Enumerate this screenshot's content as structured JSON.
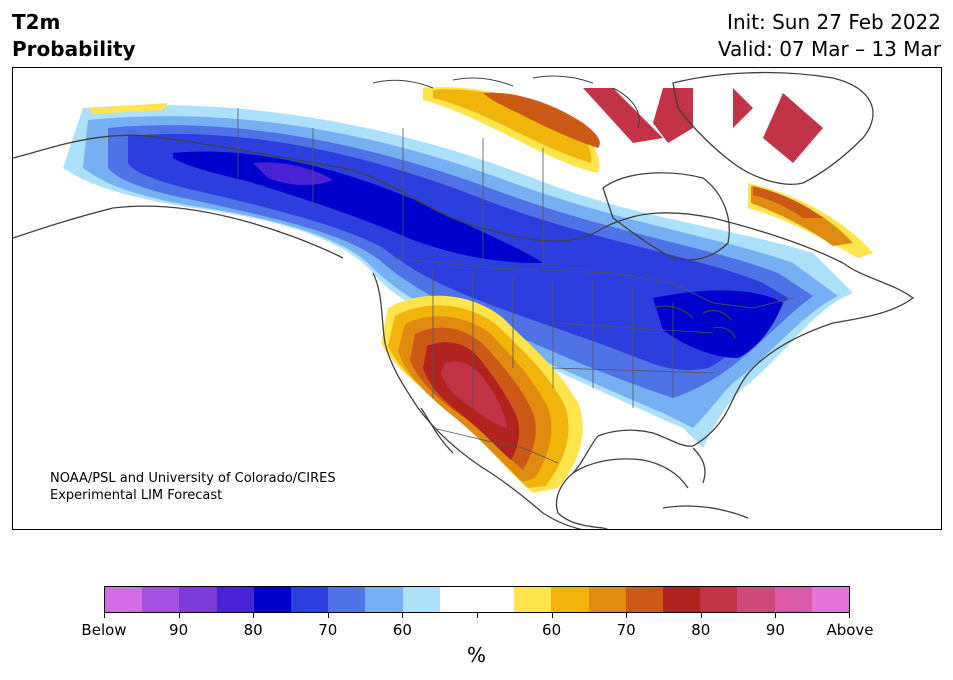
{
  "header": {
    "title_line1": "T2m",
    "title_line2": "Probability",
    "init": "Init: Sun 27 Feb 2022",
    "valid": "Valid: 07 Mar – 13 Mar"
  },
  "credit": {
    "line1": "NOAA/PSL and University of Colorado/CIRES",
    "line2": "Experimental LIM Forecast"
  },
  "colorbar": {
    "colors": [
      "#d36de6",
      "#a452e0",
      "#7b3ad9",
      "#4a22d6",
      "#0000cc",
      "#2b3fde",
      "#4f72e6",
      "#76b0f2",
      "#ade0fb",
      "#ffffff",
      "#ffffff",
      "#ffe44d",
      "#f0b40a",
      "#e08a10",
      "#cc5a16",
      "#b2221f",
      "#c23348",
      "#cf4a78",
      "#d85aa8",
      "#e473d8"
    ],
    "tick_labels": [
      "Below",
      "90",
      "80",
      "70",
      "60",
      "",
      "60",
      "70",
      "80",
      "90",
      "Above"
    ],
    "unit": "%"
  },
  "colors": {
    "cold_pale": "#ade0fb",
    "cold_light": "#76b0f2",
    "cold_mid": "#4f72e6",
    "cold_strong": "#2b3fde",
    "cold_core": "#0000cc",
    "cold_purple": "#4a22d6",
    "warm_yellow": "#ffe44d",
    "warm_gold": "#f0b40a",
    "warm_orange": "#e08a10",
    "warm_rust": "#cc5a16",
    "warm_red": "#b2221f",
    "warm_crimson": "#c23348"
  }
}
